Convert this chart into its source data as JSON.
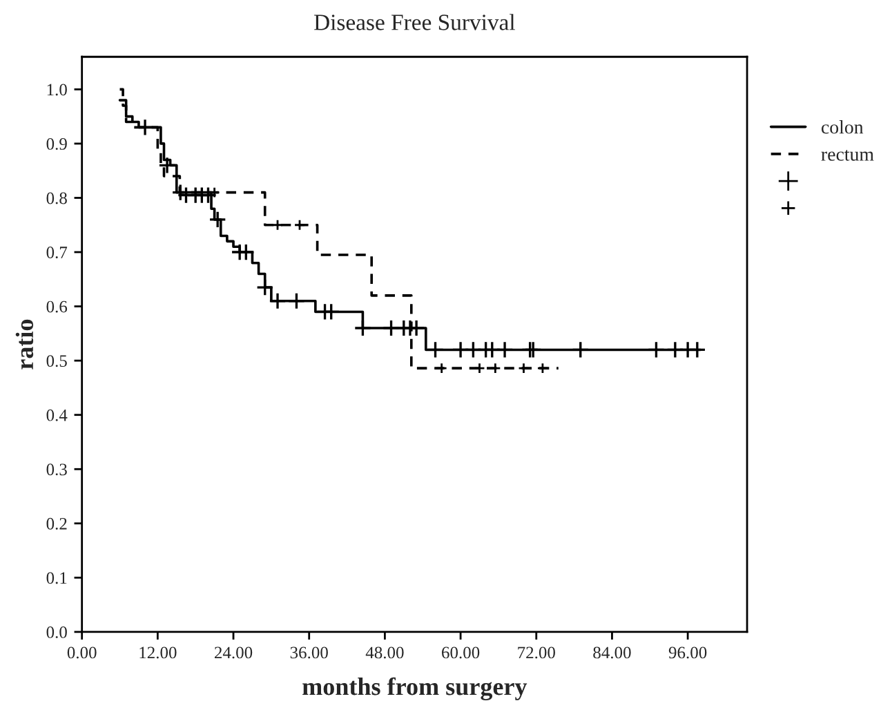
{
  "chart_data": {
    "type": "step",
    "title": "Disease Free Survival",
    "xlabel": "months from surgery",
    "ylabel": "ratio",
    "xlim": [
      0,
      105.4
    ],
    "ylim": [
      0,
      1.06
    ],
    "xticks": [
      {
        "value": 0,
        "label": "0.00"
      },
      {
        "value": 12,
        "label": "12.00"
      },
      {
        "value": 24,
        "label": "24.00"
      },
      {
        "value": 36,
        "label": "36.00"
      },
      {
        "value": 48,
        "label": "48.00"
      },
      {
        "value": 60,
        "label": "60.00"
      },
      {
        "value": 72,
        "label": "72.00"
      },
      {
        "value": 84,
        "label": "84.00"
      },
      {
        "value": 96,
        "label": "96.00"
      }
    ],
    "yticks": [
      {
        "value": 0,
        "label": "0.0"
      },
      {
        "value": 0.1,
        "label": "0.1"
      },
      {
        "value": 0.2,
        "label": "0.2"
      },
      {
        "value": 0.3,
        "label": "0.3"
      },
      {
        "value": 0.4,
        "label": "0.4"
      },
      {
        "value": 0.5,
        "label": "0.5"
      },
      {
        "value": 0.6,
        "label": "0.6"
      },
      {
        "value": 0.7,
        "label": "0.7"
      },
      {
        "value": 0.8,
        "label": "0.8"
      },
      {
        "value": 0.9,
        "label": "0.9"
      },
      {
        "value": 1.0,
        "label": "1.0"
      }
    ],
    "grid": false,
    "legend": "right",
    "series": [
      {
        "name": "colon",
        "line_style": "solid",
        "color": "#000000",
        "x": [
          6,
          7,
          8,
          9,
          12.5,
          13,
          14,
          15,
          20.5,
          21,
          22,
          23,
          24,
          25,
          27,
          28,
          29,
          30,
          37,
          44.5,
          54.5,
          98
        ],
        "values": [
          0.98,
          0.95,
          0.94,
          0.93,
          0.9,
          0.87,
          0.86,
          0.81,
          0.78,
          0.76,
          0.73,
          0.72,
          0.71,
          0.7,
          0.68,
          0.66,
          0.635,
          0.61,
          0.59,
          0.56,
          0.52,
          0.52
        ]
      },
      {
        "name": "rectum",
        "line_style": "dashed",
        "color": "#000000",
        "x": [
          6,
          6.5,
          7,
          8,
          12,
          12.5,
          13,
          15.5,
          29,
          37.3,
          45.9,
          52.2,
          75.5
        ],
        "values": [
          1.0,
          0.97,
          0.94,
          0.93,
          0.89,
          0.86,
          0.84,
          0.81,
          0.75,
          0.695,
          0.62,
          0.486,
          0.486
        ]
      },
      {
        "type": "scatter",
        "marker": "cross",
        "color": "#000000",
        "x": [
          10,
          13.5,
          15.6,
          16.5,
          18,
          19,
          20,
          21.5,
          25,
          26,
          29,
          31,
          34,
          38.5,
          39.5,
          44.5,
          49,
          51,
          52,
          53,
          56,
          60,
          62,
          64,
          65,
          67,
          71,
          71.5,
          79,
          91,
          94,
          96,
          97.5
        ],
        "values": [
          0.93,
          0.86,
          0.81,
          0.805,
          0.805,
          0.805,
          0.805,
          0.76,
          0.7,
          0.7,
          0.635,
          0.61,
          0.61,
          0.59,
          0.59,
          0.56,
          0.56,
          0.56,
          0.56,
          0.56,
          0.52,
          0.52,
          0.52,
          0.52,
          0.52,
          0.52,
          0.52,
          0.52,
          0.52,
          0.52,
          0.52,
          0.52,
          0.52
        ]
      },
      {
        "type": "scatter",
        "marker": "cross",
        "line_style": "dashed",
        "color": "#000000",
        "x": [
          21,
          31,
          34.5,
          57,
          63,
          65.5,
          70,
          73
        ],
        "values": [
          0.81,
          0.75,
          0.75,
          0.486,
          0.486,
          0.486,
          0.486,
          0.486
        ]
      }
    ]
  }
}
